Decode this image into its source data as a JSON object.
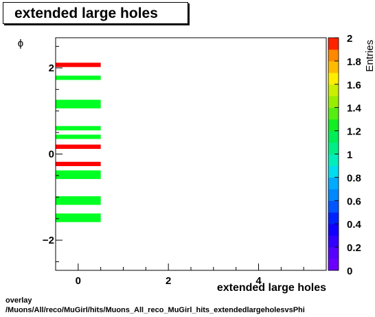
{
  "title": "extended large holes",
  "footer": {
    "line1": "overlay",
    "line2": "/Muons/All/reco/MuGirl/hits/Muons_All_reco_MuGirl_hits_extendedlargeholesvsPhi"
  },
  "chart_data": {
    "type": "heatmap",
    "title": "extended large holes",
    "xlabel": "extended large holes",
    "ylabel": "ϕ",
    "xlim": [
      -0.5,
      5.5
    ],
    "ylim": [
      -2.7,
      2.7
    ],
    "x_ticks": [
      "0",
      "2",
      "4"
    ],
    "x_tick_values": [
      0,
      2,
      4
    ],
    "y_ticks": [
      "−2",
      "0",
      "2"
    ],
    "y_tick_values": [
      -2,
      0,
      2
    ],
    "colorbar": {
      "label": "Entries",
      "range": [
        0,
        2
      ],
      "ticks": [
        "0",
        "0.2",
        "0.4",
        "0.6",
        "0.8",
        "1",
        "1.2",
        "1.4",
        "1.6",
        "1.8",
        "2"
      ],
      "tick_values": [
        0,
        0.2,
        0.4,
        0.6,
        0.8,
        1,
        1.2,
        1.4,
        1.6,
        1.8,
        2
      ]
    },
    "cells": [
      {
        "x": [
          -0.5,
          0.5
        ],
        "y": [
          2.02,
          2.12
        ],
        "value": 2
      },
      {
        "x": [
          -0.5,
          0.5
        ],
        "y": [
          1.72,
          1.82
        ],
        "value": 1
      },
      {
        "x": [
          -0.5,
          0.5
        ],
        "y": [
          1.06,
          1.26
        ],
        "value": 1
      },
      {
        "x": [
          -0.5,
          0.5
        ],
        "y": [
          0.55,
          0.65
        ],
        "value": 1
      },
      {
        "x": [
          -0.5,
          0.5
        ],
        "y": [
          0.35,
          0.45
        ],
        "value": 1
      },
      {
        "x": [
          -0.5,
          0.5
        ],
        "y": [
          0.12,
          0.22
        ],
        "value": 2
      },
      {
        "x": [
          -0.5,
          0.5
        ],
        "y": [
          -0.28,
          -0.18
        ],
        "value": 2
      },
      {
        "x": [
          -0.5,
          0.5
        ],
        "y": [
          -0.58,
          -0.38
        ],
        "value": 1
      },
      {
        "x": [
          -0.5,
          0.5
        ],
        "y": [
          -1.18,
          -0.98
        ],
        "value": 1
      },
      {
        "x": [
          -0.5,
          0.5
        ],
        "y": [
          -1.58,
          -1.38
        ],
        "value": 1
      }
    ]
  }
}
